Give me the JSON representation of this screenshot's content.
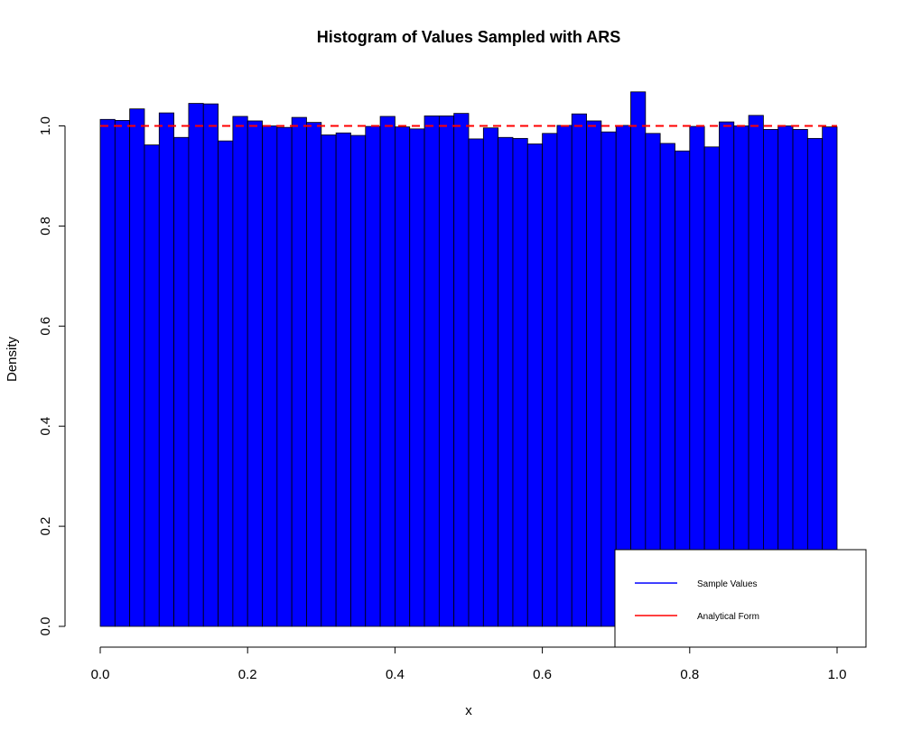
{
  "chart_data": {
    "type": "bar",
    "title": "Histogram of Values Sampled with ARS",
    "xlabel": "x",
    "ylabel": "Density",
    "xlim": [
      0,
      1
    ],
    "ylim": [
      0,
      1.0
    ],
    "x_ticks": [
      "0.0",
      "0.2",
      "0.4",
      "0.6",
      "0.8",
      "1.0"
    ],
    "y_ticks": [
      "0.0",
      "0.2",
      "0.4",
      "0.6",
      "0.8",
      "1.0"
    ],
    "bin_width": 0.02,
    "bar_color": "#0000ff",
    "bar_edge_color": "#000000",
    "values": [
      1.013,
      1.011,
      1.034,
      0.962,
      1.026,
      0.977,
      1.045,
      1.044,
      0.97,
      1.019,
      1.01,
      1.0,
      0.997,
      1.017,
      1.007,
      0.982,
      0.986,
      0.981,
      0.999,
      1.019,
      0.998,
      0.994,
      1.02,
      1.02,
      1.025,
      0.974,
      0.996,
      0.977,
      0.975,
      0.964,
      0.985,
      1.001,
      1.024,
      1.01,
      0.988,
      1.001,
      1.068,
      0.985,
      0.965,
      0.95,
      0.999,
      0.958,
      1.008,
      1.0,
      1.021,
      0.993,
      1.0,
      0.993,
      0.975,
      0.998
    ],
    "reference_line": {
      "y": 1.0,
      "color": "#ff0000",
      "style": "dashed"
    },
    "legend": {
      "placement": "bottom-right",
      "entries": [
        {
          "label": "Sample Values",
          "color": "#0000ff"
        },
        {
          "label": "Analytical Form",
          "color": "#ff0000"
        }
      ]
    }
  }
}
